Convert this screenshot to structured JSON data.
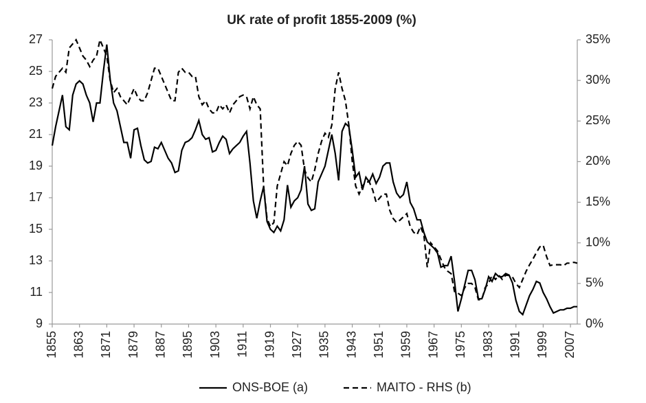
{
  "chart_data": {
    "type": "line",
    "title": "UK rate of profit 1855-2009 (%)",
    "x": [
      1855,
      1856,
      1857,
      1858,
      1859,
      1860,
      1861,
      1862,
      1863,
      1864,
      1865,
      1866,
      1867,
      1868,
      1869,
      1870,
      1871,
      1872,
      1873,
      1874,
      1875,
      1876,
      1877,
      1878,
      1879,
      1880,
      1881,
      1882,
      1883,
      1884,
      1885,
      1886,
      1887,
      1888,
      1889,
      1890,
      1891,
      1892,
      1893,
      1894,
      1895,
      1896,
      1897,
      1898,
      1899,
      1900,
      1901,
      1902,
      1903,
      1904,
      1905,
      1906,
      1907,
      1908,
      1909,
      1910,
      1911,
      1912,
      1913,
      1914,
      1915,
      1916,
      1917,
      1918,
      1919,
      1920,
      1921,
      1922,
      1923,
      1924,
      1925,
      1926,
      1927,
      1928,
      1929,
      1930,
      1931,
      1932,
      1933,
      1934,
      1935,
      1936,
      1937,
      1938,
      1939,
      1940,
      1941,
      1942,
      1943,
      1944,
      1945,
      1946,
      1947,
      1948,
      1949,
      1950,
      1951,
      1952,
      1953,
      1954,
      1955,
      1956,
      1957,
      1958,
      1959,
      1960,
      1961,
      1962,
      1963,
      1964,
      1965,
      1966,
      1967,
      1968,
      1969,
      1970,
      1971,
      1972,
      1973,
      1974,
      1975,
      1976,
      1977,
      1978,
      1979,
      1980,
      1981,
      1982,
      1983,
      1984,
      1985,
      1986,
      1987,
      1988,
      1989,
      1990,
      1991,
      1992,
      1993,
      1994,
      1995,
      1996,
      1997,
      1998,
      1999,
      2000,
      2001,
      2002,
      2003,
      2004,
      2005,
      2006,
      2007,
      2008,
      2009
    ],
    "series": [
      {
        "name": "ONS-BOE (a)",
        "color": "#000000",
        "line_style": "solid",
        "values": [
          20.3,
          21.5,
          22.5,
          23.5,
          21.5,
          21.3,
          23.5,
          24.2,
          24.4,
          24.2,
          23.5,
          23.0,
          21.8,
          23.0,
          23.0,
          25.0,
          26.7,
          24.5,
          23.0,
          22.5,
          21.5,
          20.5,
          20.5,
          19.5,
          21.3,
          21.4,
          20.3,
          19.4,
          19.2,
          19.3,
          20.2,
          20.1,
          20.5,
          20.0,
          19.5,
          19.2,
          18.6,
          18.7,
          20.0,
          20.5,
          20.6,
          20.8,
          21.3,
          21.9,
          21.0,
          20.7,
          20.8,
          19.9,
          20.0,
          20.5,
          20.9,
          20.7,
          19.8,
          20.1,
          20.3,
          20.5,
          20.9,
          21.2,
          19.2,
          16.8,
          15.7,
          16.8,
          17.7,
          15.5,
          15.0,
          14.8,
          15.2,
          14.9,
          15.6,
          17.8,
          16.4,
          16.8,
          17.0,
          17.5,
          19.0,
          16.6,
          16.2,
          16.3,
          18.0,
          18.5,
          19.0,
          20.0,
          21.0,
          19.8,
          18.1,
          21.2,
          21.7,
          21.5,
          20.0,
          18.3,
          18.6,
          17.5,
          18.3,
          18.0,
          18.5,
          17.9,
          18.3,
          19.0,
          19.2,
          19.2,
          18.0,
          17.3,
          17.0,
          17.2,
          18.0,
          16.7,
          16.3,
          15.6,
          15.6,
          14.8,
          14.2,
          14.0,
          13.8,
          13.5,
          12.6,
          12.7,
          12.7,
          13.3,
          11.7,
          9.8,
          10.6,
          11.5,
          12.4,
          12.4,
          11.8,
          10.6,
          10.6,
          11.2,
          12.0,
          11.7,
          12.2,
          12.0,
          12.0,
          12.2,
          12.1,
          11.6,
          10.5,
          9.8,
          9.6,
          10.2,
          10.8,
          11.2,
          11.7,
          11.6,
          11.0,
          10.6,
          10.1,
          9.7,
          9.8,
          9.9,
          9.9,
          10.0,
          10.0,
          10.1,
          10.1
        ]
      },
      {
        "name": "MAITO - RHS (b)",
        "color": "#000000",
        "line_style": "dashed",
        "axis": "y2",
        "values": [
          29,
          30.5,
          31,
          31.5,
          31,
          34,
          34.5,
          35,
          34,
          33,
          32.5,
          31.7,
          32.5,
          33,
          35,
          34,
          33,
          30,
          28.5,
          29,
          28,
          27.5,
          27,
          28,
          29,
          28,
          27.5,
          27.5,
          28.5,
          30,
          31.5,
          31.5,
          30.5,
          29.5,
          28.5,
          27.5,
          27.5,
          31,
          31.5,
          31,
          31,
          30.5,
          30.5,
          28,
          27,
          27.5,
          26.5,
          26,
          26,
          27,
          26.5,
          27,
          26,
          27,
          27.5,
          28,
          28.2,
          28,
          26.5,
          28,
          27,
          26.5,
          17,
          13,
          12,
          12.5,
          17,
          18.5,
          20,
          19.5,
          21,
          22,
          22.5,
          22,
          19,
          18,
          17.5,
          19,
          21,
          22.5,
          23.5,
          23,
          24.5,
          29,
          31,
          29,
          27.5,
          24.5,
          20,
          17,
          16,
          17,
          17.5,
          17.5,
          16.5,
          15,
          15.5,
          16,
          16,
          14,
          13,
          12.5,
          12.8,
          13.2,
          13.6,
          12,
          11.3,
          11,
          12,
          11,
          7,
          10,
          9.5,
          9,
          8,
          7,
          6.5,
          6.2,
          4,
          3.8,
          3.5,
          4.5,
          5,
          5,
          4.5,
          3,
          3,
          4.5,
          5,
          6,
          5.5,
          6,
          5.5,
          6,
          6,
          5.8,
          5,
          4.5,
          5.5,
          6.5,
          7.3,
          8,
          8.8,
          9.5,
          9.7,
          8.3,
          7.2,
          7.3,
          7.3,
          7.3,
          7.2,
          7.5,
          7.5,
          7.6,
          7.5
        ]
      }
    ],
    "xlim": [
      1855,
      2009
    ],
    "xticks": [
      1855,
      1863,
      1871,
      1879,
      1887,
      1895,
      1903,
      1911,
      1919,
      1927,
      1935,
      1943,
      1951,
      1959,
      1967,
      1975,
      1983,
      1991,
      1999,
      2007
    ],
    "ylim": [
      9,
      27
    ],
    "yticks": [
      9,
      11,
      13,
      15,
      17,
      19,
      21,
      23,
      25,
      27
    ],
    "y2lim": [
      0,
      35
    ],
    "y2ticks": [
      {
        "value": 0,
        "label": "0%"
      },
      {
        "value": 5,
        "label": "5%"
      },
      {
        "value": 10,
        "label": "10%"
      },
      {
        "value": 15,
        "label": "15%"
      },
      {
        "value": 20,
        "label": "20%"
      },
      {
        "value": 25,
        "label": "25%"
      },
      {
        "value": 30,
        "label": "30%"
      },
      {
        "value": 35,
        "label": "35%"
      }
    ],
    "grid": false,
    "legend": "bottom"
  }
}
